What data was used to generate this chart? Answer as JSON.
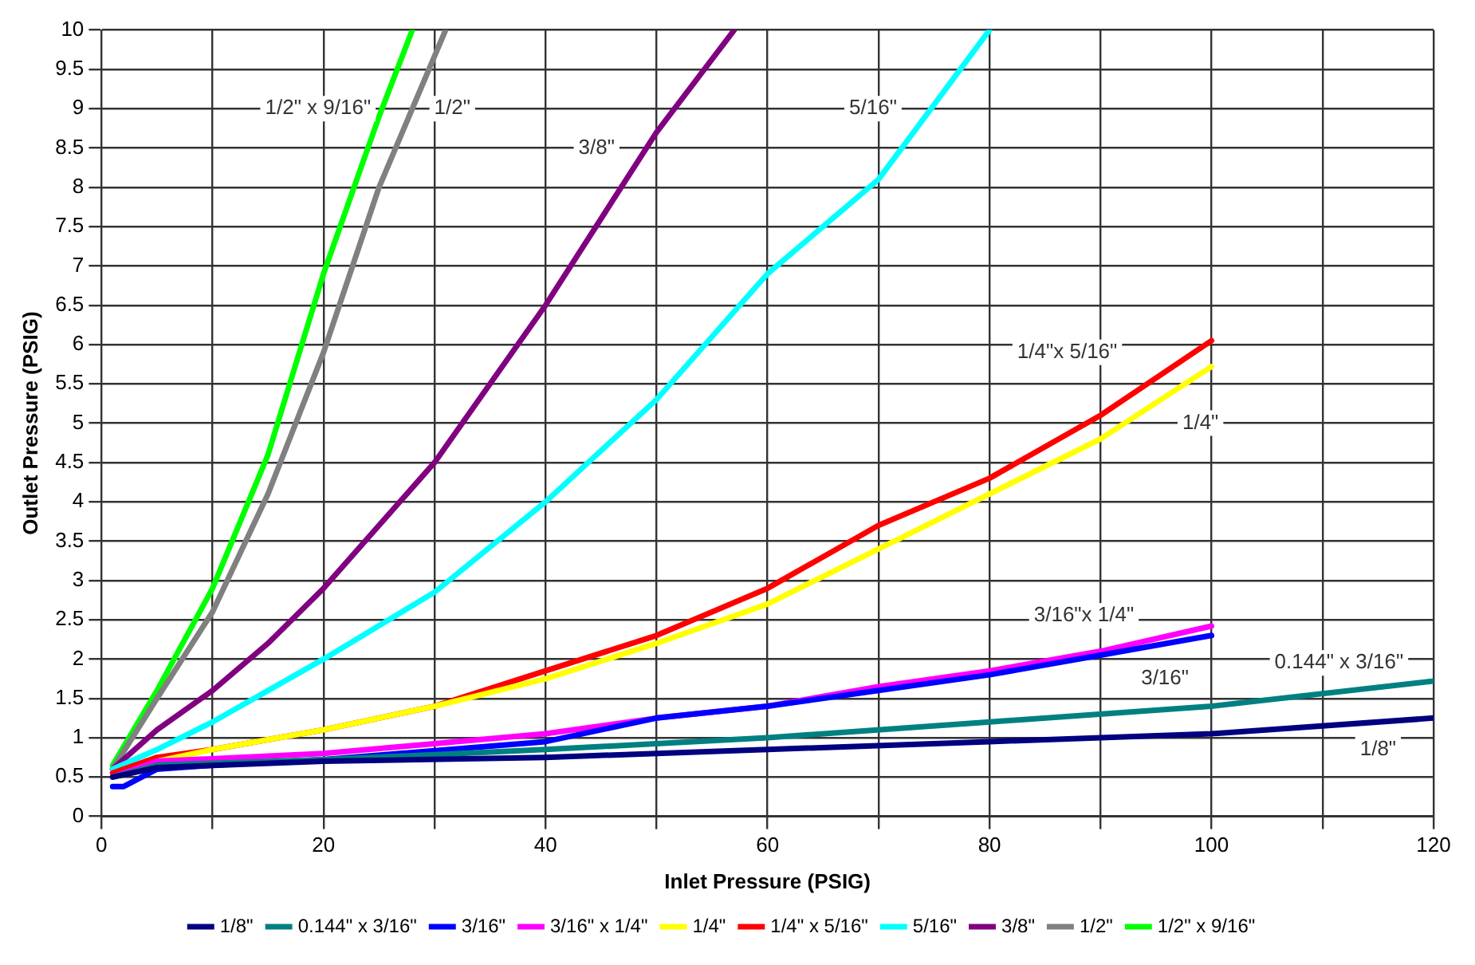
{
  "chart_data": {
    "type": "line",
    "xlabel": "Inlet Pressure (PSIG)",
    "ylabel": "Outlet Pressure (PSIG)",
    "xlim": [
      0,
      120
    ],
    "ylim": [
      0,
      10
    ],
    "xticks": [
      0,
      {
        "value": 10,
        "label": null
      },
      20,
      {
        "value": 30,
        "label": null
      },
      40,
      {
        "value": 50,
        "label": null
      },
      60,
      {
        "value": 70,
        "label": null
      },
      80,
      {
        "value": 90,
        "label": null
      },
      100,
      {
        "value": 110,
        "label": null
      },
      120
    ],
    "yticks": [
      0,
      0.5,
      1,
      1.5,
      2,
      2.5,
      3,
      3.5,
      4,
      4.5,
      5,
      5.5,
      6,
      6.5,
      7,
      7.5,
      8,
      8.5,
      9,
      9.5,
      10
    ],
    "grid": true,
    "legend": "bottom",
    "marker": "none",
    "line_style": "solid",
    "series": [
      {
        "name": "1/8\"",
        "color": "#000080",
        "x": [
          1,
          5,
          20,
          40,
          60,
          80,
          100,
          120
        ],
        "values": [
          0.5,
          0.62,
          0.7,
          0.75,
          0.85,
          0.95,
          1.05,
          1.25
        ]
      },
      {
        "name": "0.144\" x 3/16\"",
        "color": "#008080",
        "x": [
          1,
          5,
          20,
          40,
          60,
          80,
          100,
          120
        ],
        "values": [
          0.5,
          0.65,
          0.72,
          0.85,
          1.0,
          1.2,
          1.4,
          1.72
        ]
      },
      {
        "name": "3/16\"",
        "color": "#0000ff",
        "x": [
          1,
          2,
          5,
          10,
          20,
          40,
          50,
          60,
          70,
          80,
          90,
          100
        ],
        "values": [
          0.38,
          0.38,
          0.6,
          0.65,
          0.72,
          0.95,
          1.25,
          1.4,
          1.6,
          1.8,
          2.05,
          2.3
        ]
      },
      {
        "name": "3/16\" x 1/4\"",
        "color": "#ff00ff",
        "x": [
          1,
          5,
          20,
          40,
          50,
          60,
          70,
          80,
          90,
          100
        ],
        "values": [
          0.5,
          0.7,
          0.8,
          1.05,
          1.25,
          1.4,
          1.65,
          1.85,
          2.1,
          2.42
        ]
      },
      {
        "name": "1/4\"",
        "color": "#ffff00",
        "x": [
          5,
          10,
          20,
          30,
          40,
          50,
          60,
          70,
          80,
          90,
          100
        ],
        "values": [
          0.7,
          0.85,
          1.1,
          1.4,
          1.75,
          2.2,
          2.7,
          3.4,
          4.1,
          4.8,
          5.72
        ]
      },
      {
        "name": "1/4\" x 5/16\"",
        "color": "#ff0000",
        "x": [
          1,
          5,
          10,
          20,
          30,
          40,
          50,
          60,
          70,
          80,
          90,
          100
        ],
        "values": [
          0.55,
          0.75,
          0.85,
          1.1,
          1.4,
          1.85,
          2.3,
          2.9,
          3.7,
          4.3,
          5.1,
          6.05
        ]
      },
      {
        "name": "5/16\"",
        "color": "#00ffff",
        "x": [
          1,
          5,
          10,
          15,
          20,
          30,
          40,
          50,
          60,
          70,
          80
        ],
        "values": [
          0.6,
          0.85,
          1.2,
          1.6,
          2.0,
          2.85,
          4.0,
          5.3,
          6.9,
          8.1,
          10
        ]
      },
      {
        "name": "3/8\"",
        "color": "#800080",
        "x": [
          1,
          5,
          10,
          15,
          20,
          30,
          40,
          50,
          57
        ],
        "values": [
          0.6,
          1.1,
          1.6,
          2.2,
          2.9,
          4.5,
          6.5,
          8.7,
          10
        ]
      },
      {
        "name": "1/2\"",
        "color": "#808080",
        "x": [
          1,
          5,
          10,
          15,
          20,
          25,
          31
        ],
        "values": [
          0.6,
          1.5,
          2.6,
          4.1,
          5.9,
          8.0,
          10
        ]
      },
      {
        "name": "1/2\" x 9/16\"",
        "color": "#00ff00",
        "x": [
          1,
          5,
          10,
          15,
          20,
          25,
          28
        ],
        "values": [
          0.65,
          1.6,
          2.9,
          4.6,
          6.9,
          8.9,
          10
        ]
      }
    ],
    "annotations": [
      "1/2\" x 9/16\"",
      {
        "text": "1/2\"",
        "x": 31.6,
        "y": 9
      },
      {
        "text": "3/8\"",
        "x": 44.6,
        "y": 8.5
      },
      {
        "text": "5/16\"",
        "x": 69.5,
        "y": 9
      },
      "1/4\"x 5/16\"",
      {
        "text": "1/4\"",
        "x": 99,
        "y": 5
      },
      "3/16\"x 1/4\"",
      {
        "text": "3/16\"",
        "x": 95.8,
        "y": 1.75
      },
      "0.144\" x 3/16\"",
      {
        "text": "1/8\"",
        "x": 115,
        "y": 0.85
      }
    ]
  }
}
